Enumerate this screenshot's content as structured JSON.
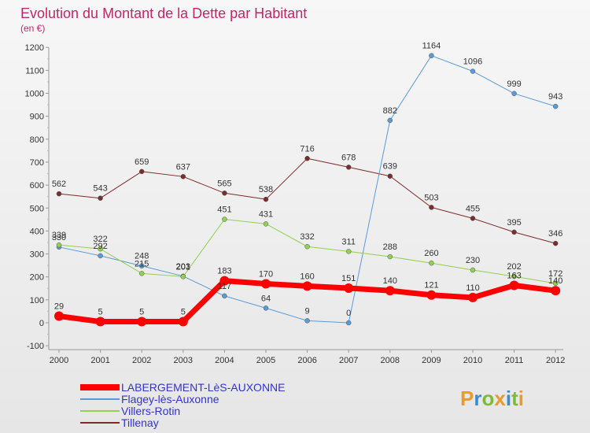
{
  "chart_data": {
    "type": "line",
    "title": "Evolution du Montant de la Dette par Habitant",
    "subtitle": "(en €)",
    "x": [
      "2000",
      "2001",
      "2002",
      "2003",
      "2004",
      "2005",
      "2006",
      "2007",
      "2008",
      "2009",
      "2010",
      "2011",
      "2012"
    ],
    "ylim": [
      -100,
      1200
    ],
    "yticks": [
      -100,
      0,
      100,
      200,
      300,
      400,
      500,
      600,
      700,
      800,
      900,
      1000,
      1100,
      1200
    ],
    "grid": false,
    "legend_position": "bottom-left",
    "series": [
      {
        "name": "LABERGEMENT-LèS-AUXONNE",
        "color": "#ff0000",
        "width": 7,
        "values": [
          29,
          5,
          5,
          5,
          183,
          170,
          160,
          151,
          140,
          121,
          110,
          163,
          140
        ]
      },
      {
        "name": "Flagey-lès-Auxonne",
        "color": "#5b9bd5",
        "width": 1,
        "values": [
          330,
          292,
          248,
          203,
          117,
          64,
          9,
          0,
          882,
          1164,
          1096,
          999,
          943
        ]
      },
      {
        "name": "Villers-Rotin",
        "color": "#92d050",
        "width": 1,
        "values": [
          339,
          322,
          215,
          201,
          451,
          431,
          332,
          311,
          288,
          260,
          230,
          202,
          172
        ]
      },
      {
        "name": "Tillenay",
        "color": "#7b2c2c",
        "width": 1,
        "values": [
          562,
          543,
          659,
          637,
          565,
          538,
          716,
          678,
          639,
          503,
          455,
          395,
          346
        ]
      }
    ]
  },
  "logo": {
    "text": "Proxiti"
  }
}
